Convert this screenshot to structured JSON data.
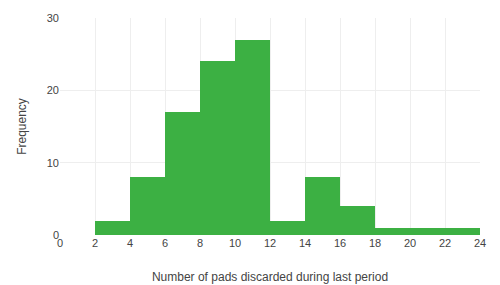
{
  "chart_data": {
    "type": "histogram",
    "xlabel": "Number of pads discarded during last period",
    "ylabel": "Frequency",
    "bins": [
      0,
      2,
      4,
      6,
      8,
      10,
      12,
      14,
      16,
      18,
      20,
      22,
      24
    ],
    "values": [
      0,
      2,
      8,
      17,
      24,
      27,
      2,
      8,
      4,
      1,
      1,
      1
    ],
    "color": "#3cb043",
    "xlim": [
      0,
      24
    ],
    "ylim": [
      0,
      30
    ],
    "xticks": [
      0,
      2,
      4,
      6,
      8,
      10,
      12,
      14,
      16,
      18,
      20,
      22,
      24
    ],
    "yticks": [
      0,
      10,
      20,
      30
    ],
    "grid": true
  }
}
